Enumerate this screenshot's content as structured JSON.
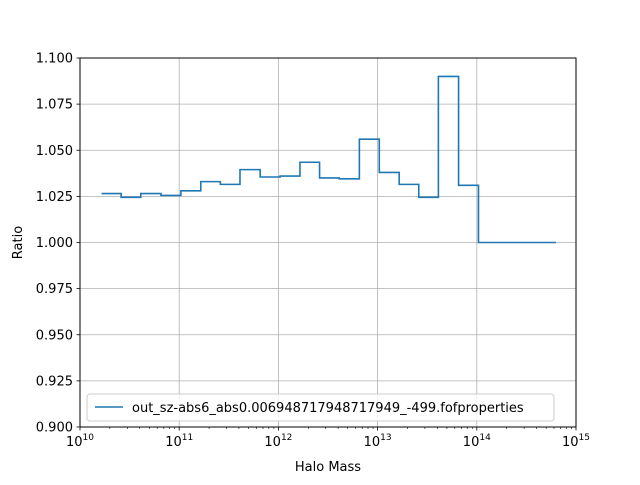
{
  "chart_data": {
    "type": "line",
    "step": "post",
    "xlabel": "Halo Mass",
    "ylabel": "Ratio",
    "xscale": "log",
    "xlim": [
      10000000000.0,
      1000000000000000.0
    ],
    "ylim": [
      0.9,
      1.1
    ],
    "grid": true,
    "legend_position": "lower-left",
    "x_ticks": [
      {
        "base": "10",
        "exp": "10",
        "value": 10000000000.0
      },
      {
        "base": "10",
        "exp": "11",
        "value": 100000000000.0
      },
      {
        "base": "10",
        "exp": "12",
        "value": 1000000000000.0
      },
      {
        "base": "10",
        "exp": "13",
        "value": 10000000000000.0
      },
      {
        "base": "10",
        "exp": "14",
        "value": 100000000000000.0
      },
      {
        "base": "10",
        "exp": "15",
        "value": 1000000000000000.0
      }
    ],
    "y_ticks": [
      "0.900",
      "0.925",
      "0.950",
      "0.975",
      "1.000",
      "1.025",
      "1.050",
      "1.075",
      "1.100"
    ],
    "series": [
      {
        "name": "out_sz-abs6_abs0.006948717948717949_-499.fofproperties",
        "color": "#1f77b4",
        "x": [
          16500000000.0,
          26000000000.0,
          41000000000.0,
          65500000000.0,
          104000000000.0,
          165000000000.0,
          260000000000.0,
          410000000000.0,
          655000000000.0,
          1040000000000.0,
          1650000000000.0,
          2600000000000.0,
          4100000000000.0,
          6550000000000.0,
          10400000000000.0,
          16500000000000.0,
          26000000000000.0,
          41000000000000.0,
          65500000000000.0,
          104000000000000.0,
          165000000000000.0,
          630000000000000.0
        ],
        "y": [
          1.0265,
          1.0245,
          1.0265,
          1.0255,
          1.028,
          1.033,
          1.0315,
          1.0395,
          1.0355,
          1.036,
          1.0435,
          1.035,
          1.0345,
          1.056,
          1.038,
          1.0315,
          1.0245,
          1.09,
          1.031,
          1.0,
          1.0,
          1.0
        ]
      }
    ]
  }
}
